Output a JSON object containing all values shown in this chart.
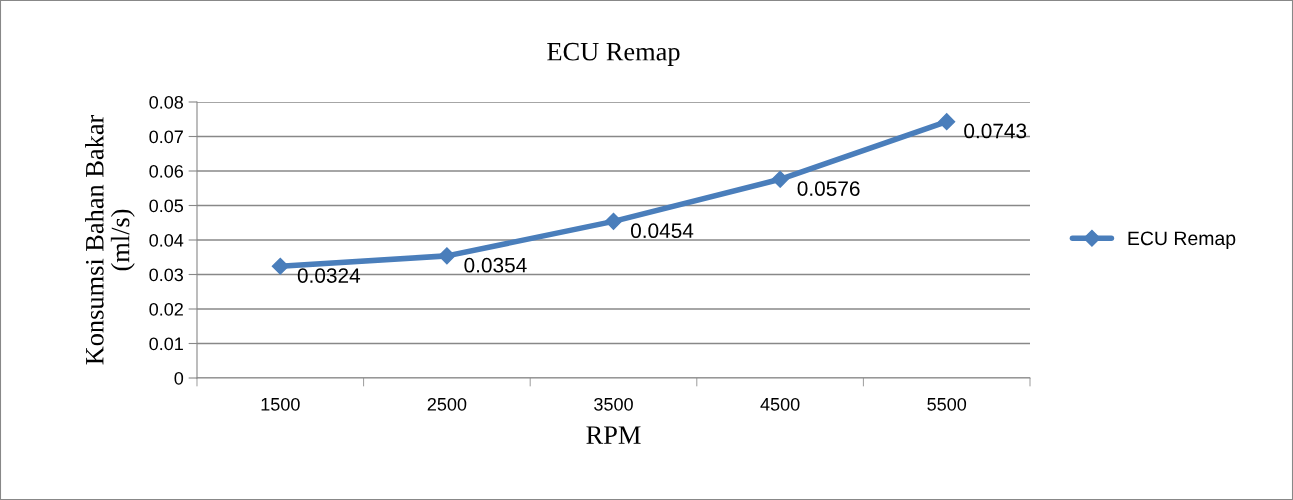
{
  "chart_data": {
    "type": "line",
    "title": "ECU Remap",
    "xlabel": "RPM",
    "ylabel": "Konsumsi Bahan Bakar\n(ml/s)",
    "categories": [
      "1500",
      "2500",
      "3500",
      "4500",
      "5500"
    ],
    "series": [
      {
        "name": "ECU Remap",
        "color": "#4a7ebb",
        "values": [
          0.0324,
          0.0354,
          0.0454,
          0.0576,
          0.0743
        ]
      }
    ],
    "ylim": [
      0,
      0.08
    ],
    "yticks": [
      0,
      0.01,
      0.02,
      0.03,
      0.04,
      0.05,
      0.06,
      0.07,
      0.08
    ],
    "grid": "y",
    "legend": "right",
    "marker": "diamond",
    "line_style": "solid",
    "data_labels": true
  }
}
